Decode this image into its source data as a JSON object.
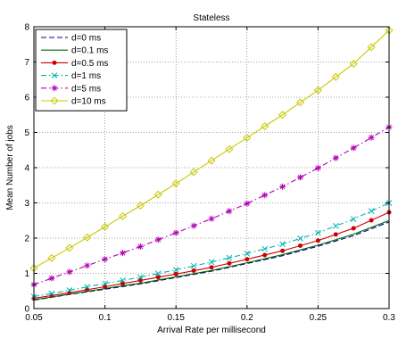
{
  "chart_data": {
    "type": "line",
    "title": "Stateless",
    "xlabel": "Arrival Rate per millisecond",
    "ylabel": "Mean Number of jobs",
    "xlim": [
      0.05,
      0.3
    ],
    "ylim": [
      0,
      8
    ],
    "x_ticks": [
      "0.05",
      "0.1",
      "0.15",
      "0.2",
      "0.25",
      "0.3"
    ],
    "y_ticks": [
      "0",
      "1",
      "2",
      "3",
      "4",
      "5",
      "6",
      "7",
      "8"
    ],
    "grid": true,
    "legend_position": "top-left",
    "series": [
      {
        "name": "d=0 ms",
        "color": "#00008b",
        "line_style": "dashed",
        "marker": "none",
        "x": [
          0.05,
          0.075,
          0.1,
          0.125,
          0.15,
          0.175,
          0.2,
          0.225,
          0.25,
          0.275,
          0.3
        ],
        "y": [
          0.24,
          0.4,
          0.55,
          0.7,
          0.88,
          1.06,
          1.28,
          1.5,
          1.77,
          2.07,
          2.46
        ]
      },
      {
        "name": "d=0.1 ms",
        "color": "#006400",
        "line_style": "solid",
        "marker": "none",
        "x": [
          0.05,
          0.075,
          0.1,
          0.125,
          0.15,
          0.175,
          0.2,
          0.225,
          0.25,
          0.275,
          0.3
        ],
        "y": [
          0.25,
          0.41,
          0.57,
          0.72,
          0.9,
          1.08,
          1.3,
          1.53,
          1.8,
          2.11,
          2.5
        ]
      },
      {
        "name": "d=0.5 ms",
        "color": "#cc0000",
        "line_style": "solid",
        "marker": "dot",
        "x": [
          0.05,
          0.075,
          0.1,
          0.125,
          0.15,
          0.175,
          0.2,
          0.225,
          0.25,
          0.275,
          0.3
        ],
        "y": [
          0.29,
          0.45,
          0.62,
          0.8,
          0.98,
          1.17,
          1.4,
          1.64,
          1.93,
          2.28,
          2.73
        ]
      },
      {
        "name": "d=1 ms",
        "color": "#00b3b3",
        "line_style": "dashdot",
        "marker": "x",
        "x": [
          0.05,
          0.075,
          0.1,
          0.125,
          0.15,
          0.175,
          0.2,
          0.225,
          0.25,
          0.275,
          0.3
        ],
        "y": [
          0.34,
          0.52,
          0.71,
          0.89,
          1.1,
          1.32,
          1.56,
          1.83,
          2.15,
          2.54,
          3.0
        ]
      },
      {
        "name": "d=5 ms",
        "color": "#b300b3",
        "line_style": "dashdot",
        "marker": "star",
        "x": [
          0.05,
          0.075,
          0.1,
          0.125,
          0.15,
          0.175,
          0.2,
          0.225,
          0.25,
          0.275,
          0.3
        ],
        "y": [
          0.68,
          1.04,
          1.4,
          1.76,
          2.15,
          2.55,
          2.98,
          3.46,
          3.99,
          4.56,
          5.15
        ]
      },
      {
        "name": "d=10 ms",
        "color": "#c8c800",
        "line_style": "solid",
        "marker": "diamond",
        "x": [
          0.05,
          0.075,
          0.1,
          0.125,
          0.15,
          0.175,
          0.2,
          0.225,
          0.25,
          0.275,
          0.3
        ],
        "y": [
          1.15,
          1.72,
          2.32,
          2.92,
          3.55,
          4.2,
          4.85,
          5.5,
          6.2,
          6.95,
          7.9
        ]
      }
    ]
  }
}
